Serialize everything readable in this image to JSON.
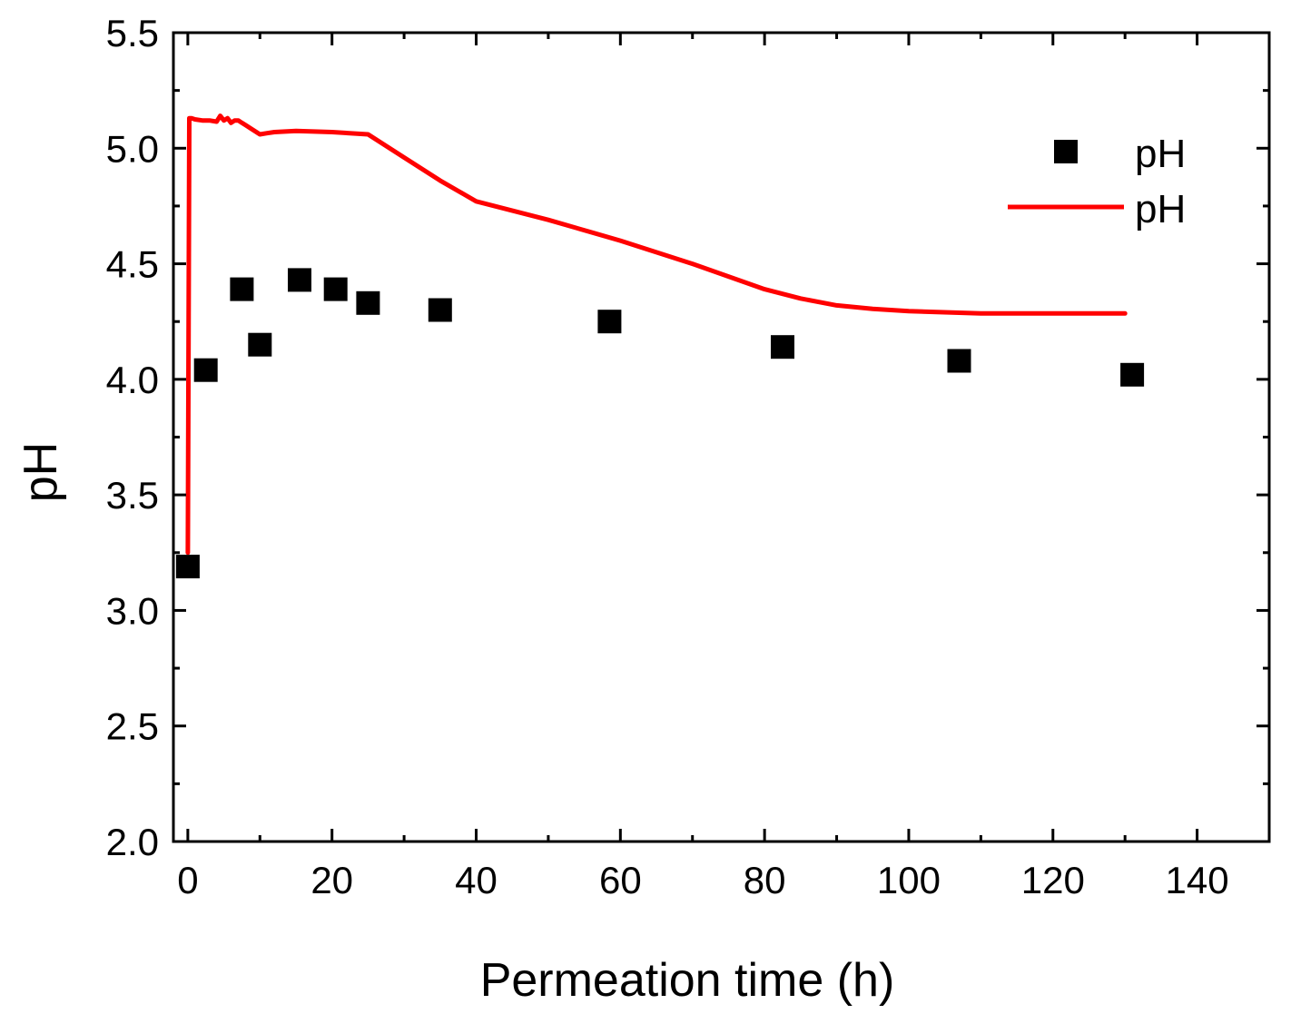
{
  "chart_data": {
    "type": "line+scatter",
    "title": "",
    "xlabel": "Permeation time (h)",
    "ylabel": "pH",
    "xlim": [
      -2,
      150
    ],
    "ylim": [
      2.0,
      5.5
    ],
    "x_ticks": [
      0,
      20,
      40,
      60,
      80,
      100,
      120,
      140
    ],
    "x_tick_labels": [
      "0",
      "20",
      "40",
      "60",
      "80",
      "100",
      "120",
      "140"
    ],
    "y_ticks": [
      2.0,
      2.5,
      3.0,
      3.5,
      4.0,
      4.5,
      5.0,
      5.5
    ],
    "y_tick_labels": [
      "2.0",
      "2.5",
      "3.0",
      "3.5",
      "4.0",
      "4.5",
      "5.0",
      "5.5"
    ],
    "grid": false,
    "legend_position": "top-right",
    "series": [
      {
        "name": "pH",
        "kind": "scatter",
        "marker": "square",
        "color": "#000000",
        "x": [
          0,
          2.5,
          7.5,
          10,
          15.5,
          20.5,
          25,
          35,
          58.5,
          82.5,
          107,
          131
        ],
        "y": [
          3.19,
          4.04,
          4.39,
          4.15,
          4.43,
          4.39,
          4.33,
          4.3,
          4.25,
          4.14,
          4.08,
          4.02
        ]
      },
      {
        "name": "pH",
        "kind": "line",
        "color": "#ff0000",
        "x": [
          0,
          0.2,
          0.5,
          1,
          2,
          3,
          4,
          4.5,
          5,
          5.5,
          6,
          6.5,
          7,
          7.5,
          8,
          9,
          10,
          11,
          12,
          15,
          20,
          25,
          30,
          35,
          40,
          50,
          60,
          70,
          80,
          85,
          90,
          95,
          100,
          110,
          120,
          130
        ],
        "y": [
          3.25,
          5.13,
          5.13,
          5.125,
          5.12,
          5.12,
          5.115,
          5.14,
          5.12,
          5.13,
          5.11,
          5.12,
          5.12,
          5.11,
          5.1,
          5.08,
          5.06,
          5.065,
          5.07,
          5.075,
          5.07,
          5.06,
          4.96,
          4.86,
          4.77,
          4.69,
          4.6,
          4.5,
          4.39,
          4.35,
          4.32,
          4.305,
          4.295,
          4.285,
          4.285,
          4.285
        ]
      }
    ]
  }
}
